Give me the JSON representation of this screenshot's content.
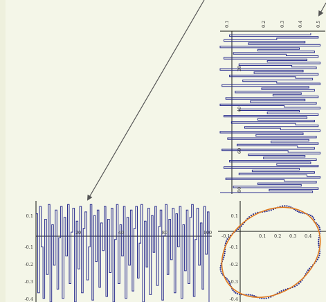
{
  "colors": {
    "background": "#f4f6e8",
    "series": "#2b2f8f",
    "fit": "#e07a1f",
    "arrow": "#555555",
    "axis": "#111111"
  },
  "chart_data": [
    {
      "type": "line",
      "title": "",
      "xlabel": "",
      "ylabel": "",
      "xlim": [
        0,
        100
      ],
      "ylim": [
        -0.4,
        0.15
      ],
      "xticks": [
        20,
        40,
        60,
        80,
        100
      ],
      "yticks": [
        0.1,
        -0.1,
        -0.2,
        -0.3,
        -0.4
      ],
      "ytick_labels": [
        "0.1",
        "-0.1",
        "-0.2",
        "-0.3",
        "-0.4"
      ],
      "xtick_labels": [
        "20",
        "40",
        "60",
        "80",
        "100"
      ],
      "series": [
        {
          "values": [
            0.08,
            -0.35,
            0.12,
            -0.1,
            -0.38,
            0.05,
            -0.25,
            0.13,
            -0.4,
            0.02,
            -0.2,
            0.1,
            -0.33,
            -0.05,
            0.12,
            -0.38,
            0.06,
            -0.15,
            0.13,
            -0.3,
            -0.02,
            0.11,
            -0.4,
            0.04,
            -0.22,
            0.12,
            -0.35,
            0.0,
            0.09,
            -0.28,
            -0.1,
            0.13,
            -0.39,
            0.07,
            -0.18,
            0.1,
            -0.32,
            0.03,
            -0.12,
            0.12,
            -0.37,
            0.05,
            -0.24,
            0.11,
            -0.4,
            -0.06,
            0.13,
            -0.3,
            0.02,
            -0.15,
            0.12,
            -0.38,
            0.06,
            -0.2,
            0.1,
            -0.34,
            0.0,
            0.12,
            -0.27,
            -0.08,
            0.13,
            -0.4,
            0.04,
            -0.21,
            0.11,
            -0.36,
            0.07,
            -0.13,
            0.12,
            -0.31,
            0.01,
            0.1,
            -0.39,
            -0.04,
            0.13,
            -0.25,
            0.05,
            -0.17,
            0.11,
            -0.35,
            0.08,
            -0.1,
            0.12,
            -0.38,
            0.02,
            -0.23,
            0.1,
            -0.3,
            0.06,
            0.13,
            -0.37,
            -0.06,
            0.11,
            -0.2,
            0.03,
            -0.33,
            0.12,
            -0.14,
            0.09,
            -0.4
          ]
        }
      ]
    },
    {
      "type": "line",
      "orientation": "vertical",
      "title": "",
      "xlabel": "",
      "ylabel": "",
      "tick_labels_rotated": [
        "0.1",
        "0.2",
        "0.3",
        "0.4",
        "0.5",
        "20",
        "40",
        "60",
        "80"
      ]
    },
    {
      "type": "scatter",
      "title": "",
      "xlabel": "",
      "ylabel": "",
      "xlim": [
        -0.1,
        0.45
      ],
      "ylim": [
        -0.4,
        0.15
      ],
      "xticks": [
        -0.1,
        0.1,
        0.2,
        0.3,
        0.4
      ],
      "xtick_labels": [
        "-0.1",
        "0.1",
        "0.2",
        "0.3",
        "0.4"
      ],
      "yticks": [
        0.1,
        -0.1,
        -0.2,
        -0.3,
        -0.4
      ],
      "ytick_labels": [
        "0.1",
        "-0.1",
        "-0.2",
        "-0.3",
        "-0.4"
      ],
      "ellipse": {
        "cx": 0.17,
        "cy": -0.13,
        "rx": 0.27,
        "ry": 0.22,
        "angle_deg": -35
      }
    }
  ],
  "labels": {
    "tl_y": [
      "0.1",
      "-0.1",
      "-0.2",
      "-0.3",
      "-0.4"
    ],
    "tl_x": [
      "20",
      "40",
      "60",
      "80",
      "100"
    ],
    "tr_top": [
      "0.1",
      "0.2",
      "0.3",
      "0.4",
      "0.5"
    ],
    "tr_left": [
      "20",
      "40",
      "60",
      "80"
    ],
    "br_x": [
      "-0.1",
      "0.1",
      "0.2",
      "0.3",
      "0.4"
    ],
    "br_y": [
      "0.1",
      "-0.1",
      "-0.2",
      "-0.3",
      "-0.4"
    ]
  }
}
